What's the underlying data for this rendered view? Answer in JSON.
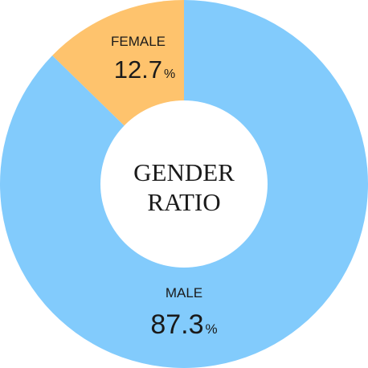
{
  "chart_data": {
    "type": "pie",
    "title_lines": [
      "GENDER",
      "RATIO"
    ],
    "slices": [
      {
        "name": "FEMALE",
        "value": 12.7,
        "value_label": "12.7",
        "unit": "%",
        "color": "#fec36d"
      },
      {
        "name": "MALE",
        "value": 87.3,
        "value_label": "87.3",
        "unit": "%",
        "color": "#82cbfc"
      }
    ],
    "donut": true,
    "legend": "none"
  }
}
